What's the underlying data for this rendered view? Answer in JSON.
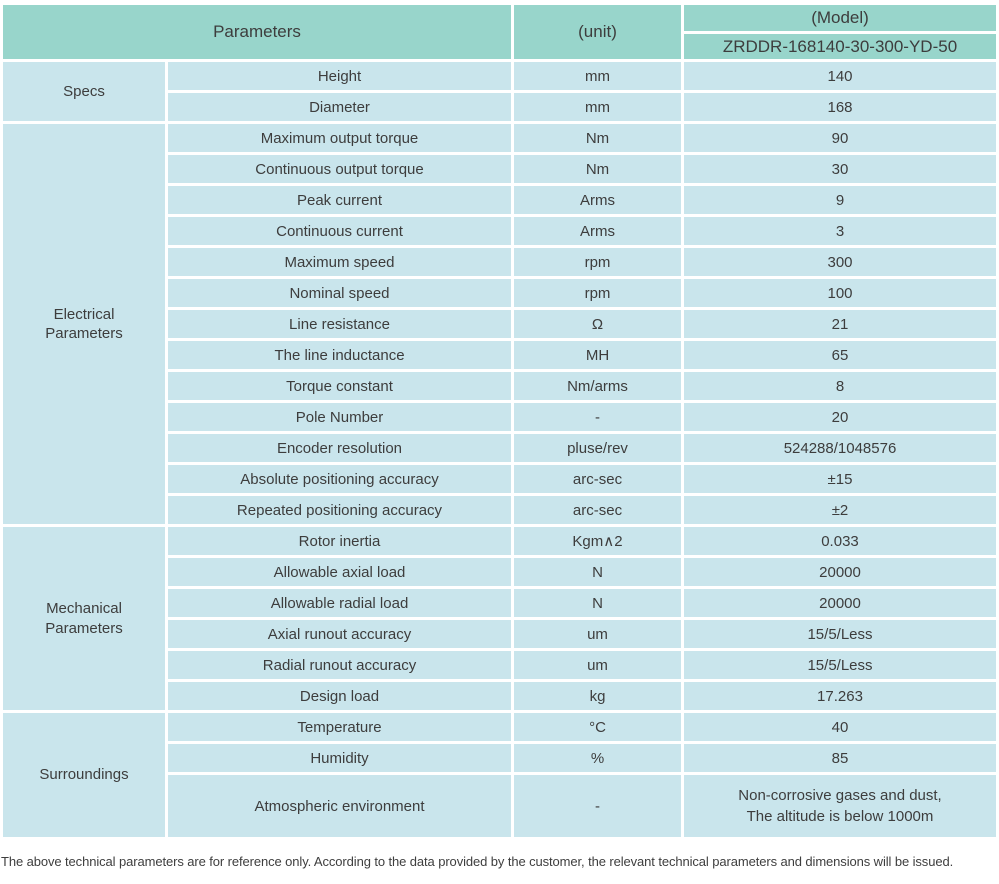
{
  "colors": {
    "header_bg": "#98d5cb",
    "cell_bg": "#c9e5ec",
    "text": "#3d3d3d",
    "gap": "#ffffff"
  },
  "header": {
    "parameters_label": "Parameters",
    "unit_label": "(unit)",
    "model_label": "(Model)",
    "model_value": "ZRDDR-168140-30-300-YD-50"
  },
  "sections": [
    {
      "group": "Specs",
      "rows": [
        {
          "param": "Height",
          "unit": "mm",
          "value": "140"
        },
        {
          "param": "Diameter",
          "unit": "mm",
          "value": "168"
        }
      ]
    },
    {
      "group": "Electrical Parameters",
      "rows": [
        {
          "param": "Maximum output torque",
          "unit": "Nm",
          "value": "90"
        },
        {
          "param": "Continuous output torque",
          "unit": "Nm",
          "value": "30"
        },
        {
          "param": "Peak current",
          "unit": "Arms",
          "value": "9"
        },
        {
          "param": "Continuous current",
          "unit": "Arms",
          "value": "3"
        },
        {
          "param": "Maximum speed",
          "unit": "rpm",
          "value": "300"
        },
        {
          "param": "Nominal speed",
          "unit": "rpm",
          "value": "100"
        },
        {
          "param": "Line resistance",
          "unit": "Ω",
          "value": "21"
        },
        {
          "param": "The line inductance",
          "unit": "MH",
          "value": "65"
        },
        {
          "param": "Torque constant",
          "unit": "Nm/arms",
          "value": "8"
        },
        {
          "param": "Pole Number",
          "unit": "-",
          "value": "20"
        },
        {
          "param": "Encoder resolution",
          "unit": "pluse/rev",
          "value": "524288/1048576"
        },
        {
          "param": "Absolute positioning accuracy",
          "unit": "arc-sec",
          "value": "±15"
        },
        {
          "param": "Repeated positioning accuracy",
          "unit": "arc-sec",
          "value": "±2"
        }
      ]
    },
    {
      "group": "Mechanical Parameters",
      "rows": [
        {
          "param": "Rotor inertia",
          "unit": "Kgm∧2",
          "value": "0.033"
        },
        {
          "param": "Allowable axial load",
          "unit": "N",
          "value": "20000"
        },
        {
          "param": "Allowable radial load",
          "unit": "N",
          "value": "20000"
        },
        {
          "param": "Axial runout accuracy",
          "unit": "um",
          "value": "15/5/Less"
        },
        {
          "param": "Radial runout accuracy",
          "unit": "um",
          "value": "15/5/Less"
        },
        {
          "param": "Design load",
          "unit": "kg",
          "value": "17.263"
        }
      ]
    },
    {
      "group": "Surroundings",
      "rows": [
        {
          "param": "Temperature",
          "unit": "°C",
          "value": "40"
        },
        {
          "param": "Humidity",
          "unit": "%",
          "value": "85"
        },
        {
          "param": "Atmospheric environment",
          "unit": "-",
          "value": "Non-corrosive gases and dust,\nThe altitude is below 1000m",
          "tall": true
        }
      ]
    }
  ],
  "footer": {
    "note": "The above technical parameters are for reference only. According to the data provided by the customer, the relevant technical parameters and dimensions will be issued."
  }
}
